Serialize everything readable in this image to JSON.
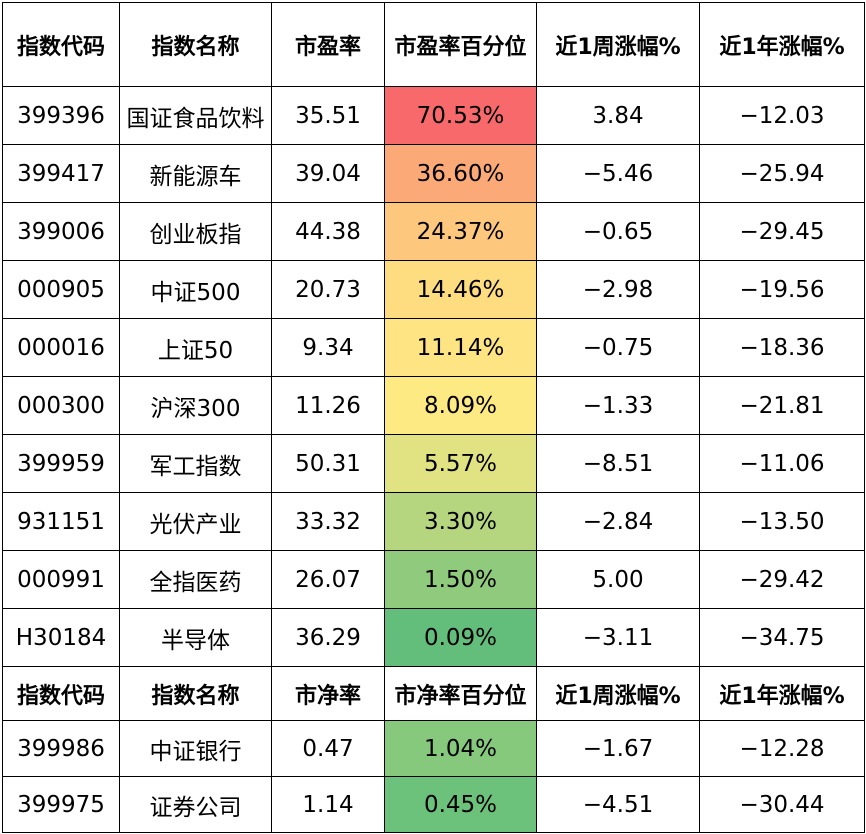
{
  "pe_headers": [
    "指数代码",
    "指数名称",
    "市盈率",
    "市盈率百分位",
    "近1周涨幅%",
    "近1年涨幅%"
  ],
  "pe_rows": [
    {
      "code": "399396",
      "name": "国证食品饮料",
      "ratio": "35.51",
      "pct": "70.53%",
      "week": "3.84",
      "year": "−12.03",
      "color": "#f8696b"
    },
    {
      "code": "399417",
      "name": "新能源车",
      "ratio": "39.04",
      "pct": "36.60%",
      "week": "−5.46",
      "year": "−25.94",
      "color": "#fbaa77"
    },
    {
      "code": "399006",
      "name": "创业板指",
      "ratio": "44.38",
      "pct": "24.37%",
      "week": "−0.65",
      "year": "−29.45",
      "color": "#fdc77d"
    },
    {
      "code": "000905",
      "name": "中证500",
      "ratio": "20.73",
      "pct": "14.46%",
      "week": "−2.98",
      "year": "−19.56",
      "color": "#fedd81"
    },
    {
      "code": "000016",
      "name": "上证50",
      "ratio": "9.34",
      "pct": "11.14%",
      "week": "−0.75",
      "year": "−18.36",
      "color": "#fee482"
    },
    {
      "code": "000300",
      "name": "沪深300",
      "ratio": "11.26",
      "pct": "8.09%",
      "week": "−1.33",
      "year": "−21.81",
      "color": "#feea83"
    },
    {
      "code": "399959",
      "name": "军工指数",
      "ratio": "50.31",
      "pct": "5.57%",
      "week": "−8.51",
      "year": "−11.06",
      "color": "#e1e383"
    },
    {
      "code": "931151",
      "name": "光伏产业",
      "ratio": "33.32",
      "pct": "3.30%",
      "week": "−2.84",
      "year": "−13.50",
      "color": "#b6d57f"
    },
    {
      "code": "000991",
      "name": "全指医药",
      "ratio": "26.07",
      "pct": "1.50%",
      "week": "5.00",
      "year": "−29.42",
      "color": "#8fca7d"
    },
    {
      "code": "H30184",
      "name": "半导体",
      "ratio": "36.29",
      "pct": "0.09%",
      "week": "−3.11",
      "year": "−34.75",
      "color": "#63be7b"
    }
  ],
  "pb_headers": [
    "指数代码",
    "指数名称",
    "市净率",
    "市净率百分位",
    "近1周涨幅%",
    "近1年涨幅%"
  ],
  "pb_rows": [
    {
      "code": "399986",
      "name": "中证银行",
      "ratio": "0.47",
      "pct": "1.04%",
      "week": "−1.67",
      "year": "−12.28",
      "color": "#86c87c"
    },
    {
      "code": "399975",
      "name": "证券公司",
      "ratio": "1.14",
      "pct": "0.45%",
      "week": "−4.51",
      "year": "−30.44",
      "color": "#6cc17b"
    }
  ]
}
